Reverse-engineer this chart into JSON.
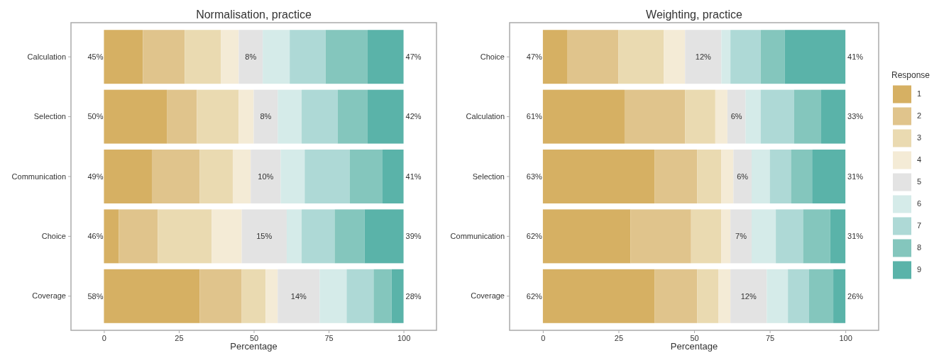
{
  "chart_data": [
    {
      "type": "bar",
      "orientation": "horizontal",
      "stacked": true,
      "title": "Normalisation, practice",
      "xlabel": "Percentage",
      "categories": [
        "Calculation",
        "Selection",
        "Communication",
        "Choice",
        "Coverage"
      ],
      "xlim": [
        -11,
        111
      ],
      "xticks": [
        0,
        25,
        50,
        75,
        100
      ],
      "grid": false,
      "legend": false,
      "series": [
        {
          "color": "#d6b063",
          "values": [
            13,
            21,
            16,
            5,
            32
          ]
        },
        {
          "color": "#e0c48c",
          "values": [
            14,
            10,
            16,
            13,
            14
          ]
        },
        {
          "color": "#eadab1",
          "values": [
            12,
            14,
            11,
            18,
            8
          ]
        },
        {
          "color": "#f4ebd6",
          "values": [
            6,
            5,
            6,
            10,
            4
          ]
        },
        {
          "color": "#e3e3e3",
          "values": [
            8,
            8,
            10,
            15,
            14
          ],
          "value_labels": [
            "8%",
            "8%",
            "10%",
            "15%",
            "14%"
          ]
        },
        {
          "color": "#d5ebe9",
          "values": [
            9,
            8,
            8,
            5,
            9
          ]
        },
        {
          "color": "#aed9d6",
          "values": [
            12,
            12,
            15,
            11,
            9
          ]
        },
        {
          "color": "#84c6bd",
          "values": [
            14,
            10,
            11,
            10,
            6
          ]
        },
        {
          "color": "#5ab3a9",
          "values": [
            12,
            12,
            7,
            13,
            4
          ]
        }
      ],
      "annotations": [
        "45%",
        "47%",
        "50%",
        "42%",
        "49%",
        "41%",
        "46%",
        "39%",
        "58%",
        "28%"
      ]
    },
    {
      "type": "bar",
      "orientation": "horizontal",
      "stacked": true,
      "title": "Weighting, practice",
      "xlabel": "Percentage",
      "categories": [
        "Choice",
        "Calculation",
        "Selection",
        "Communication",
        "Coverage"
      ],
      "xlim": [
        -11,
        111
      ],
      "xticks": [
        0,
        25,
        50,
        75,
        100
      ],
      "grid": false,
      "legend": "right",
      "legend_title": "Response",
      "series": [
        {
          "name": "1",
          "color": "#d6b063",
          "values": [
            8,
            27,
            37,
            29,
            37
          ]
        },
        {
          "name": "2",
          "color": "#e0c48c",
          "values": [
            17,
            20,
            14,
            20,
            14
          ]
        },
        {
          "name": "3",
          "color": "#eadab1",
          "values": [
            15,
            10,
            8,
            10,
            7
          ]
        },
        {
          "name": "4",
          "color": "#f4ebd6",
          "values": [
            7,
            4,
            4,
            3,
            4
          ]
        },
        {
          "name": "5",
          "color": "#e3e3e3",
          "values": [
            12,
            6,
            6,
            7,
            12
          ],
          "value_labels": [
            "12%",
            "6%",
            "6%",
            "7%",
            "12%"
          ]
        },
        {
          "name": "6",
          "color": "#d5ebe9",
          "values": [
            3,
            5,
            6,
            8,
            7
          ]
        },
        {
          "name": "7",
          "color": "#aed9d6",
          "values": [
            10,
            11,
            7,
            9,
            7
          ]
        },
        {
          "name": "8",
          "color": "#84c6bd",
          "values": [
            8,
            9,
            7,
            9,
            8
          ]
        },
        {
          "name": "9",
          "color": "#5ab3a9",
          "values": [
            20,
            8,
            11,
            5,
            4
          ]
        }
      ],
      "annotations": [
        "47%",
        "41%",
        "61%",
        "33%",
        "63%",
        "31%",
        "62%",
        "31%",
        "62%",
        "26%"
      ]
    }
  ]
}
